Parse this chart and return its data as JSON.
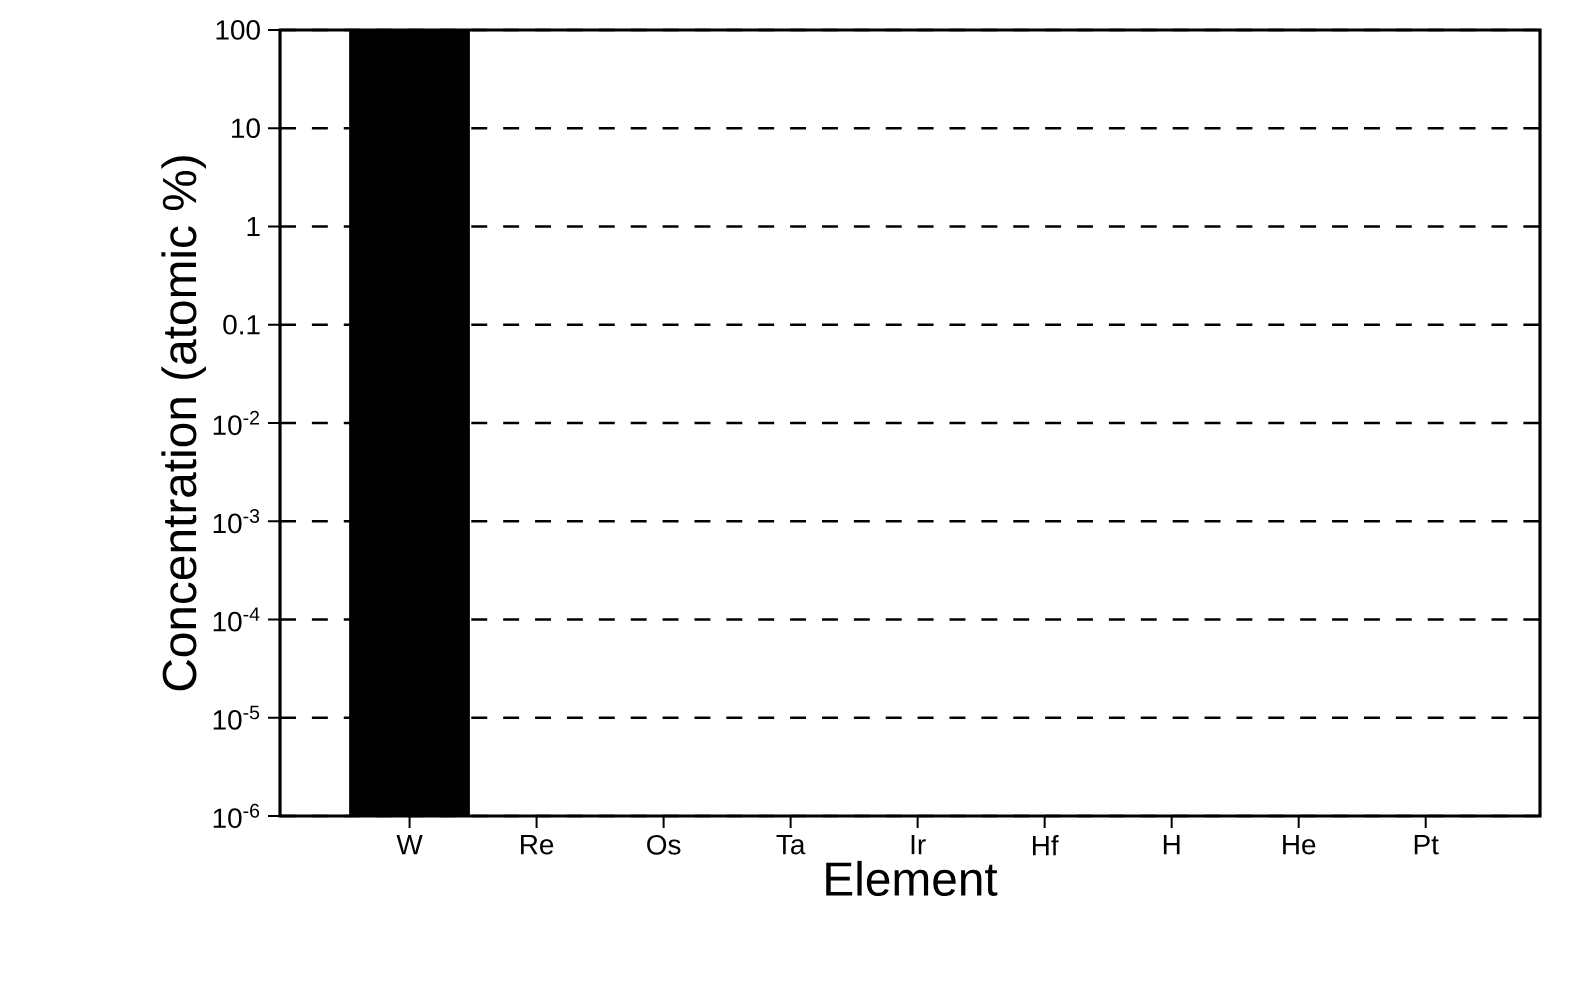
{
  "chart_data": {
    "type": "bar",
    "xlabel": "Element",
    "ylabel": "Concentration (atomic %)",
    "categories": [
      "W",
      "Re",
      "Os",
      "Ta",
      "Ir",
      "Hf",
      "H",
      "He",
      "Pt"
    ],
    "values": [
      100,
      null,
      null,
      null,
      null,
      null,
      null,
      null,
      null
    ],
    "color": "#000000",
    "log": "y",
    "ylim": [
      1e-06,
      100
    ],
    "yticks": [
      {
        "value": 1e-06,
        "label": "10$^{-6}$"
      },
      {
        "value": 1e-05,
        "label": "10$^{-5}$"
      },
      {
        "value": 0.0001,
        "label": "10$^{-4}$"
      },
      {
        "value": 0.001,
        "label": "10$^{-3}$"
      },
      {
        "value": 0.01,
        "label": "10$^{-2}$"
      },
      0.1,
      1,
      10,
      100
    ],
    "grid": "y"
  }
}
